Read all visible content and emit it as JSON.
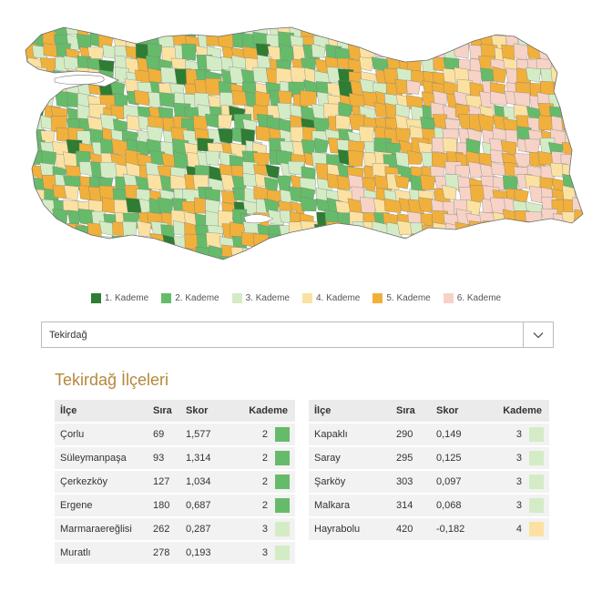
{
  "colors": {
    "k1": "#2e7d32",
    "k2": "#66bb6a",
    "k3": "#d4ecc6",
    "k4": "#fbe2a3",
    "k5": "#f0b03b",
    "k6": "#f6d3c6",
    "title": "#b5883a"
  },
  "legend": [
    {
      "label": "1. Kademe",
      "color": "#2e7d32"
    },
    {
      "label": "2. Kademe",
      "color": "#66bb6a"
    },
    {
      "label": "3. Kademe",
      "color": "#d4ecc6"
    },
    {
      "label": "4. Kademe",
      "color": "#fbe2a3"
    },
    {
      "label": "5. Kademe",
      "color": "#f0b03b"
    },
    {
      "label": "6. Kademe",
      "color": "#f6d3c6"
    }
  ],
  "select": {
    "value": "Tekirdağ",
    "icon": "chevron-down-icon"
  },
  "section_title": "Tekirdağ İlçeleri",
  "table_headers": {
    "ilce": "İlçe",
    "sira": "Sıra",
    "skor": "Skor",
    "kademe": "Kademe"
  },
  "table_left": [
    {
      "ilce": "Çorlu",
      "sira": "69",
      "skor": "1,577",
      "kademe": "2"
    },
    {
      "ilce": "Süleymanpaşa",
      "sira": "93",
      "skor": "1,314",
      "kademe": "2"
    },
    {
      "ilce": "Çerkezköy",
      "sira": "127",
      "skor": "1,034",
      "kademe": "2"
    },
    {
      "ilce": "Ergene",
      "sira": "180",
      "skor": "0,687",
      "kademe": "2"
    },
    {
      "ilce": "Marmaraereğlisi",
      "sira": "262",
      "skor": "0,287",
      "kademe": "3"
    },
    {
      "ilce": "Muratlı",
      "sira": "278",
      "skor": "0,193",
      "kademe": "3"
    }
  ],
  "table_right": [
    {
      "ilce": "Kapaklı",
      "sira": "290",
      "skor": "0,149",
      "kademe": "3"
    },
    {
      "ilce": "Saray",
      "sira": "295",
      "skor": "0,125",
      "kademe": "3"
    },
    {
      "ilce": "Şarköy",
      "sira": "303",
      "skor": "0,097",
      "kademe": "3"
    },
    {
      "ilce": "Malkara",
      "sira": "314",
      "skor": "0,068",
      "kademe": "3"
    },
    {
      "ilce": "Hayrabolu",
      "sira": "420",
      "skor": "-0,182",
      "kademe": "4"
    }
  ]
}
